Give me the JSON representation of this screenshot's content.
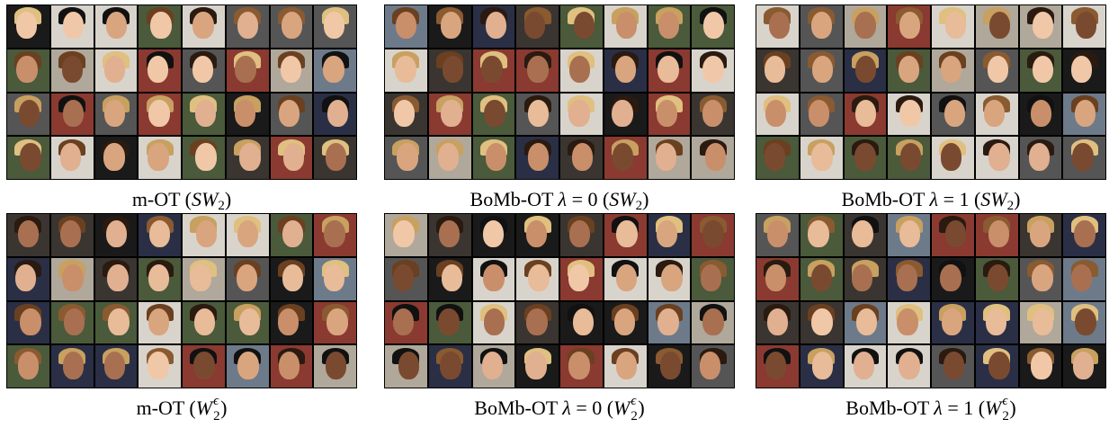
{
  "figure": {
    "panels": [
      {
        "caption": [
          {
            "text": "m-OT ("
          },
          {
            "text": "SW",
            "style": "math"
          },
          {
            "text": "2",
            "style": "sub"
          },
          {
            "text": ")"
          }
        ]
      },
      {
        "caption": [
          {
            "text": "BoMb-OT "
          },
          {
            "text": "λ",
            "style": "math"
          },
          {
            "text": " = 0 ("
          },
          {
            "text": "SW",
            "style": "math"
          },
          {
            "text": "2",
            "style": "sub"
          },
          {
            "text": ")"
          }
        ]
      },
      {
        "caption": [
          {
            "text": "BoMb-OT "
          },
          {
            "text": "λ",
            "style": "math"
          },
          {
            "text": " = 1 ("
          },
          {
            "text": "SW",
            "style": "math"
          },
          {
            "text": "2",
            "style": "sub"
          },
          {
            "text": ")"
          }
        ]
      },
      {
        "caption": [
          {
            "text": "m-OT ("
          },
          {
            "text": "W",
            "style": "math"
          },
          {
            "style": "supsub",
            "sup": "ϵ",
            "sub": "2"
          },
          {
            "text": ")"
          }
        ]
      },
      {
        "caption": [
          {
            "text": "BoMb-OT "
          },
          {
            "text": "λ",
            "style": "math"
          },
          {
            "text": " = 0 ("
          },
          {
            "text": "W",
            "style": "math"
          },
          {
            "style": "supsub",
            "sup": "ϵ",
            "sub": "2"
          },
          {
            "text": ")"
          }
        ]
      },
      {
        "caption": [
          {
            "text": "BoMb-OT "
          },
          {
            "text": "λ",
            "style": "math"
          },
          {
            "text": " = 1 ("
          },
          {
            "text": "W",
            "style": "math"
          },
          {
            "style": "supsub",
            "sup": "ϵ",
            "sub": "2"
          },
          {
            "text": ")"
          }
        ]
      }
    ]
  }
}
